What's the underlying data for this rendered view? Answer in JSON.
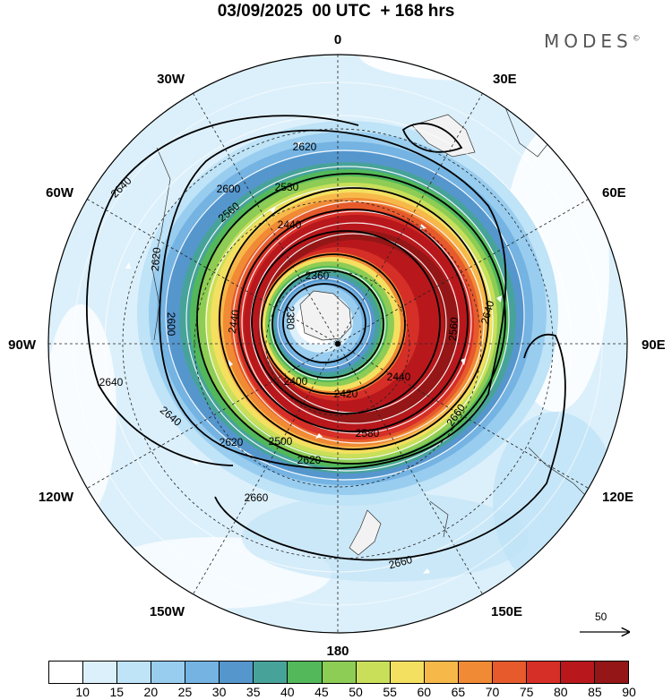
{
  "header": {
    "date": "03/09/2025",
    "time": "00 UTC",
    "lead": "+ 168 hrs"
  },
  "brand": {
    "name": "MODES",
    "symbol": "©"
  },
  "longitudes": [
    "0",
    "30E",
    "60E",
    "90E",
    "120E",
    "150E",
    "180",
    "150W",
    "120W",
    "90W",
    "60W",
    "30W"
  ],
  "contour_labels": [
    "2360",
    "2380",
    "2400",
    "2420",
    "2440",
    "2440",
    "2440",
    "2500",
    "2530",
    "2560",
    "2560",
    "2580",
    "2600",
    "2600",
    "2620",
    "2620",
    "2620",
    "2620",
    "2640",
    "2640",
    "2640",
    "2640",
    "2660",
    "2660",
    "2660",
    "2680"
  ],
  "reference_vector": {
    "label": "50"
  },
  "colorbar": {
    "colors": [
      "#ffffff",
      "#dcf0fb",
      "#bfe3f7",
      "#99cdef",
      "#74b3e2",
      "#5596cd",
      "#47a39a",
      "#52b85a",
      "#8dcc55",
      "#c9df5a",
      "#f4e060",
      "#f7b84a",
      "#f08a35",
      "#e65a2c",
      "#d62f27",
      "#b8181c",
      "#951616"
    ],
    "ticks": [
      "10",
      "15",
      "20",
      "25",
      "30",
      "35",
      "40",
      "45",
      "50",
      "55",
      "60",
      "65",
      "70",
      "75",
      "80",
      "85",
      "90"
    ]
  }
}
